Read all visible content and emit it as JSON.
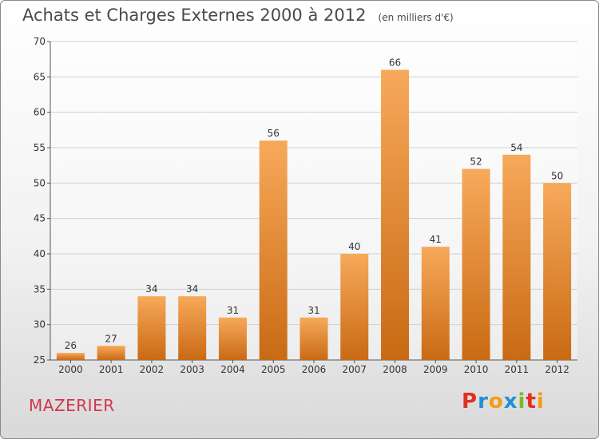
{
  "header": {
    "title": "Achats et Charges Externes 2000 à 2012",
    "unit": "(en milliers d'€)"
  },
  "footer": {
    "commune": "MAZERIER",
    "brand": "Proxiti",
    "brand_letters": [
      {
        "char": "P",
        "color": "#e0301e"
      },
      {
        "char": "r",
        "color": "#1f8fd6"
      },
      {
        "char": "o",
        "color": "#f39c12"
      },
      {
        "char": "x",
        "color": "#1f8fd6"
      },
      {
        "char": "i",
        "color": "#7cb82f"
      },
      {
        "char": "t",
        "color": "#e0301e"
      },
      {
        "char": "i",
        "color": "#f39c12"
      }
    ]
  },
  "colors": {
    "bar_top": "#f7a95a",
    "bar_bottom": "#c96a14",
    "grid": "#d0d0d0",
    "axis": "#555555",
    "text": "#333333"
  },
  "chart_data": {
    "type": "bar",
    "title": "Achats et Charges Externes 2000 à 2012",
    "subtitle": "(en milliers d'€)",
    "xlabel": "",
    "ylabel": "",
    "categories": [
      "2000",
      "2001",
      "2002",
      "2003",
      "2004",
      "2005",
      "2006",
      "2007",
      "2008",
      "2009",
      "2010",
      "2011",
      "2012"
    ],
    "values": [
      26,
      27,
      34,
      34,
      31,
      56,
      31,
      40,
      66,
      41,
      52,
      54,
      50
    ],
    "ylim": [
      25,
      70
    ],
    "yticks": [
      25,
      30,
      35,
      40,
      45,
      50,
      55,
      60,
      65,
      70
    ],
    "grid": true,
    "data_labels": true
  }
}
